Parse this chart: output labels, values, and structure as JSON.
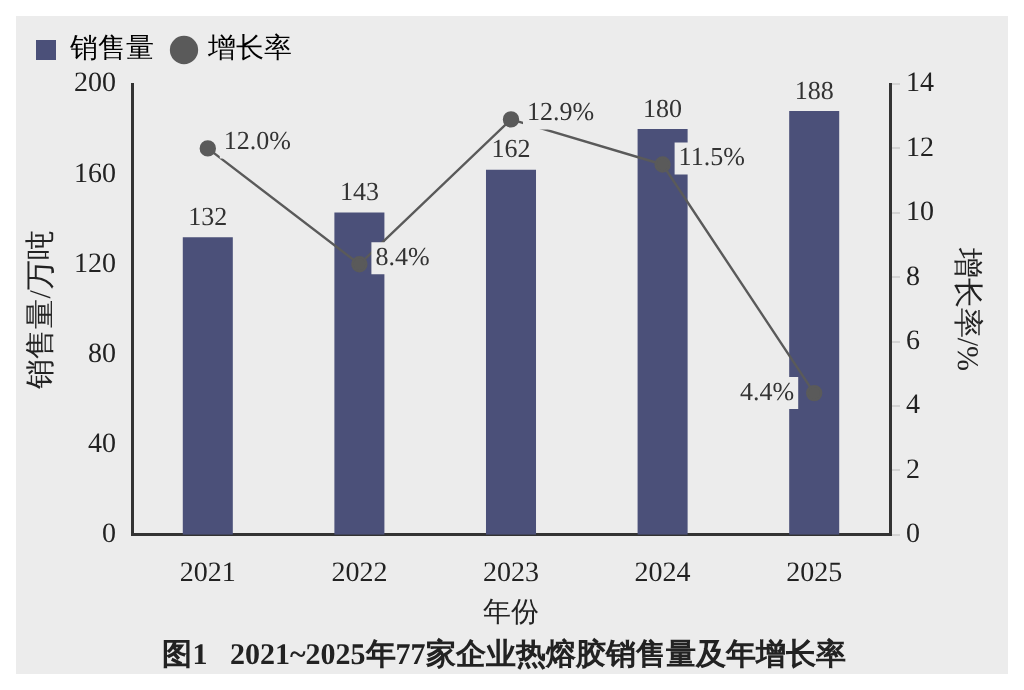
{
  "chart_data": {
    "type": "bar",
    "title": "图1   2021~2025年77家企业热熔胶销售量及年增长率",
    "xlabel": "年份",
    "ylabel": "销售量/万吨",
    "y2label": "增长率/%",
    "categories": [
      "2021",
      "2022",
      "2023",
      "2024",
      "2025"
    ],
    "series": [
      {
        "name": "销售量",
        "color": "#4b5079",
        "values": [
          132,
          143,
          162,
          180,
          188
        ],
        "value_labels": [
          "132",
          "143",
          "162",
          "180",
          "188"
        ]
      },
      {
        "name": "增长率",
        "type": "line",
        "axis": "y2",
        "color": "#5a5a5a",
        "marker": "circle",
        "values": [
          12.0,
          8.4,
          12.9,
          11.5,
          4.4
        ],
        "value_labels": [
          "12.0%",
          "8.4%",
          "12.9%",
          "11.5%",
          "4.4%"
        ]
      }
    ],
    "ylim": [
      0,
      200
    ],
    "yticks": [
      0,
      40,
      80,
      120,
      160,
      200
    ],
    "y2lim": [
      0,
      14
    ],
    "y2ticks": [
      0,
      2,
      4,
      6,
      8,
      10,
      12,
      14
    ],
    "grid": false,
    "legend": "top left"
  }
}
